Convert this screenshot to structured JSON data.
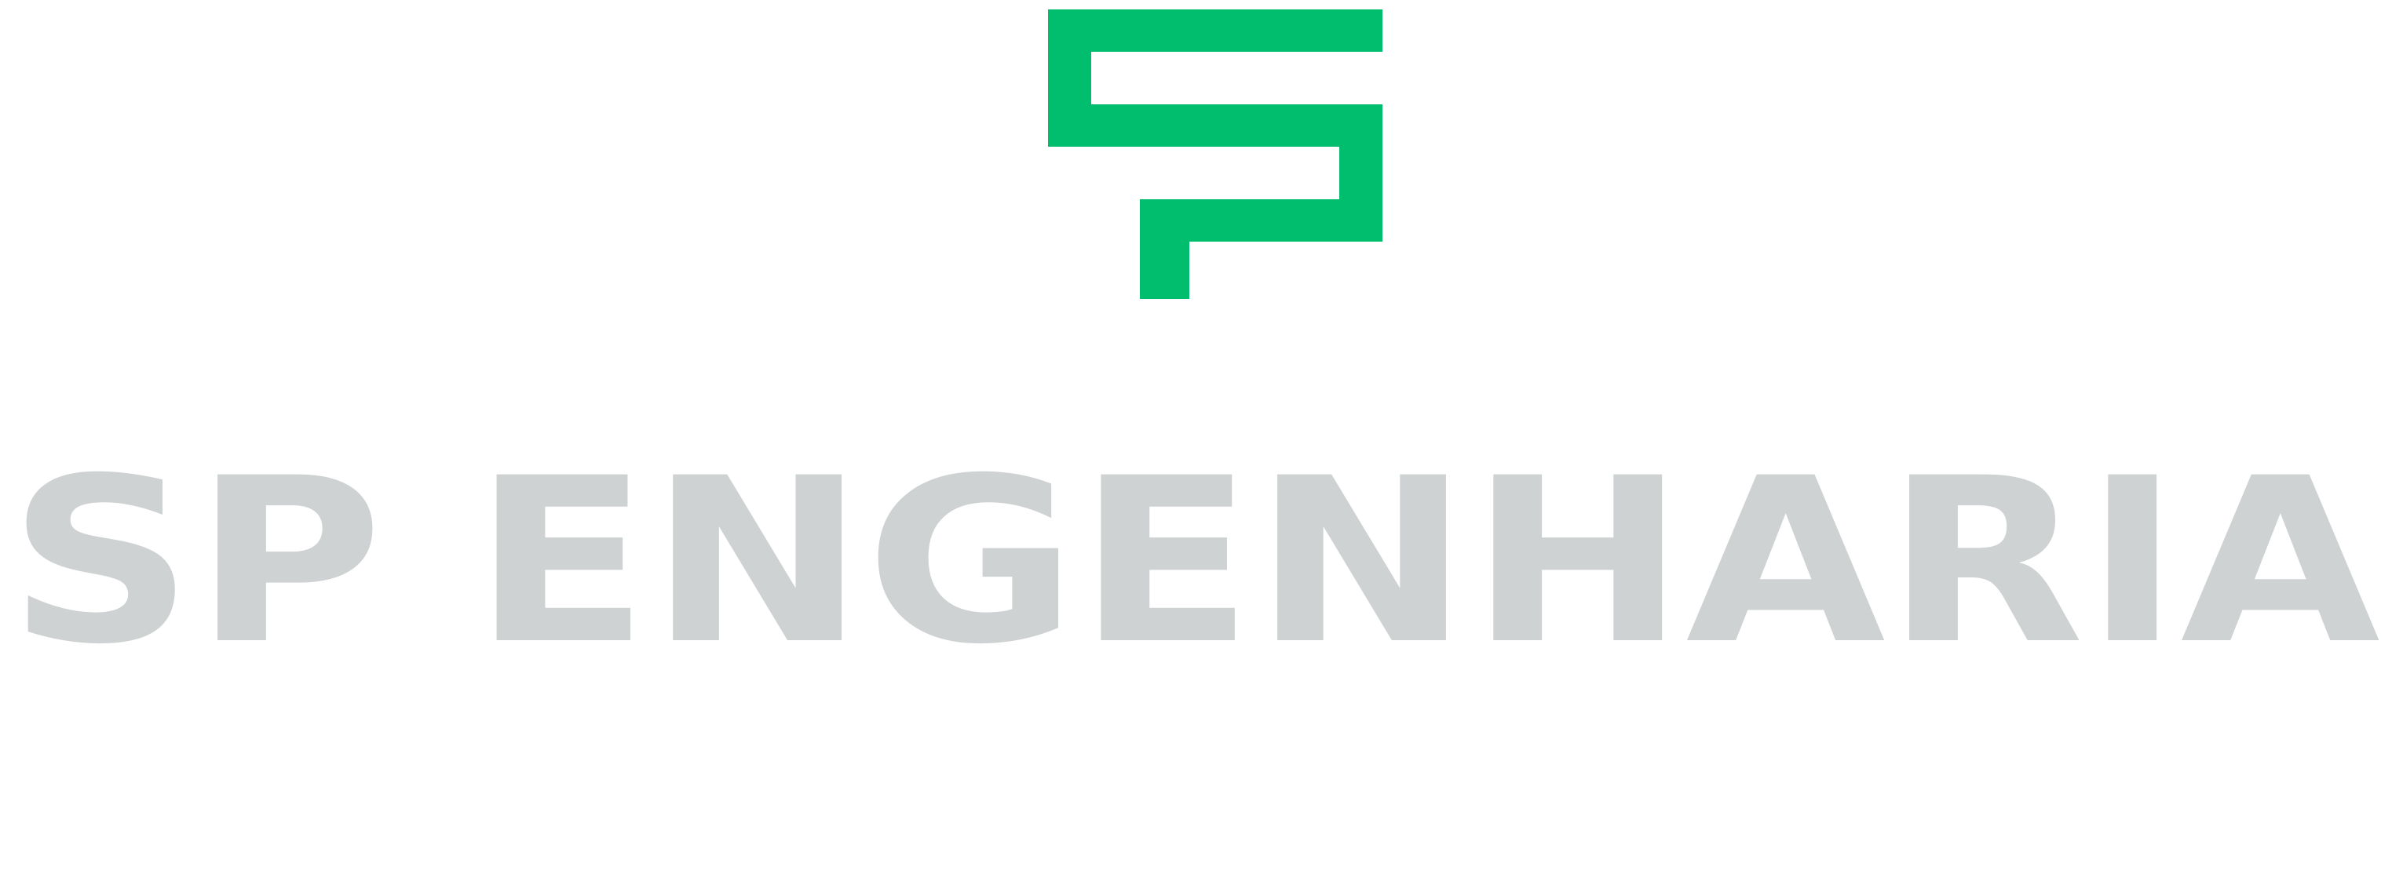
{
  "logo": {
    "text": "SP ENGENHARIA"
  }
}
